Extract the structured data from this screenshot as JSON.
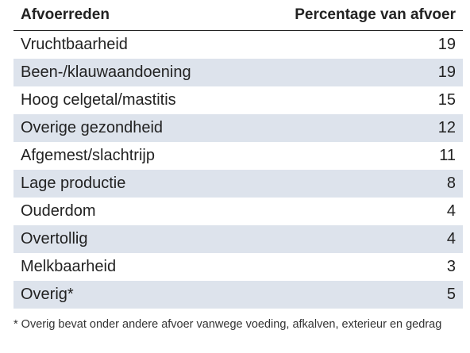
{
  "table": {
    "headers": {
      "reason": "Afvoerreden",
      "percentage": "Percentage van afvoer"
    },
    "rows": [
      {
        "reason": "Vruchtbaarheid",
        "percentage": "19"
      },
      {
        "reason": "Been-/klauwaandoening",
        "percentage": "19"
      },
      {
        "reason": "Hoog celgetal/mastitis",
        "percentage": "15"
      },
      {
        "reason": "Overige gezondheid",
        "percentage": "12"
      },
      {
        "reason": "Afgemest/slachtrijp",
        "percentage": "11"
      },
      {
        "reason": "Lage productie",
        "percentage": "8"
      },
      {
        "reason": "Ouderdom",
        "percentage": "4"
      },
      {
        "reason": "Overtollig",
        "percentage": "4"
      },
      {
        "reason": "Melkbaarheid",
        "percentage": "3"
      },
      {
        "reason": "Overig*",
        "percentage": "5"
      }
    ],
    "stripe_color": "#dde3ec"
  },
  "footnote": "* Overig bevat onder andere afvoer vanwege voeding, afkalven, exterieur en gedrag"
}
